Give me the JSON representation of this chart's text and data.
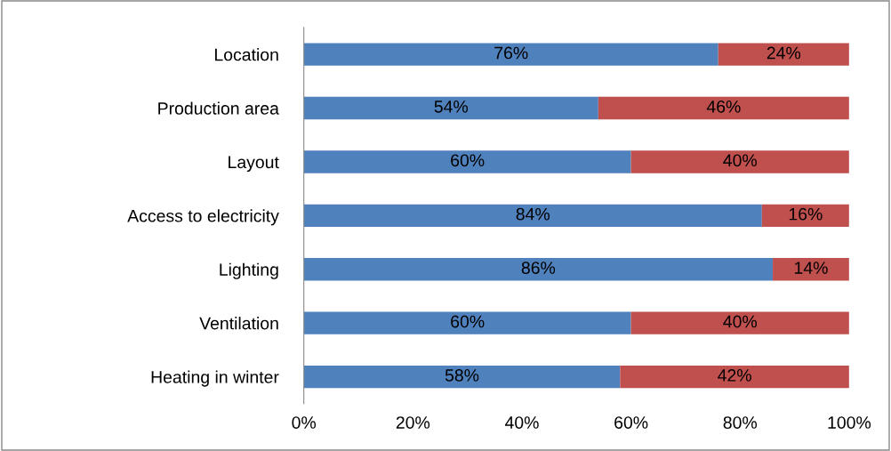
{
  "chart_data": {
    "type": "bar",
    "orientation": "horizontal",
    "stacked": true,
    "categories": [
      "Location",
      "Production area",
      "Layout",
      "Access to electricity",
      "Lighting",
      "Ventilation",
      "Heating in winter"
    ],
    "series": [
      {
        "color": "#4f81bd",
        "values": [
          76,
          54,
          60,
          84,
          86,
          60,
          58
        ],
        "value_labels": [
          "76%",
          "54%",
          "60%",
          "84%",
          "86%",
          "60%",
          "58%"
        ]
      },
      {
        "color": "#c0504d",
        "values": [
          24,
          46,
          40,
          16,
          14,
          40,
          42
        ],
        "value_labels": [
          "24%",
          "46%",
          "40%",
          "16%",
          "14%",
          "40%",
          "42%"
        ]
      }
    ],
    "xlim": [
      0,
      100
    ],
    "xticks": [
      {
        "value": 0,
        "label": "0%"
      },
      {
        "value": 20,
        "label": "20%"
      },
      {
        "value": 40,
        "label": "40%"
      },
      {
        "value": 60,
        "label": "60%"
      },
      {
        "value": 80,
        "label": "80%"
      },
      {
        "value": 100,
        "label": "100%"
      }
    ],
    "grid": false,
    "legend": false
  }
}
